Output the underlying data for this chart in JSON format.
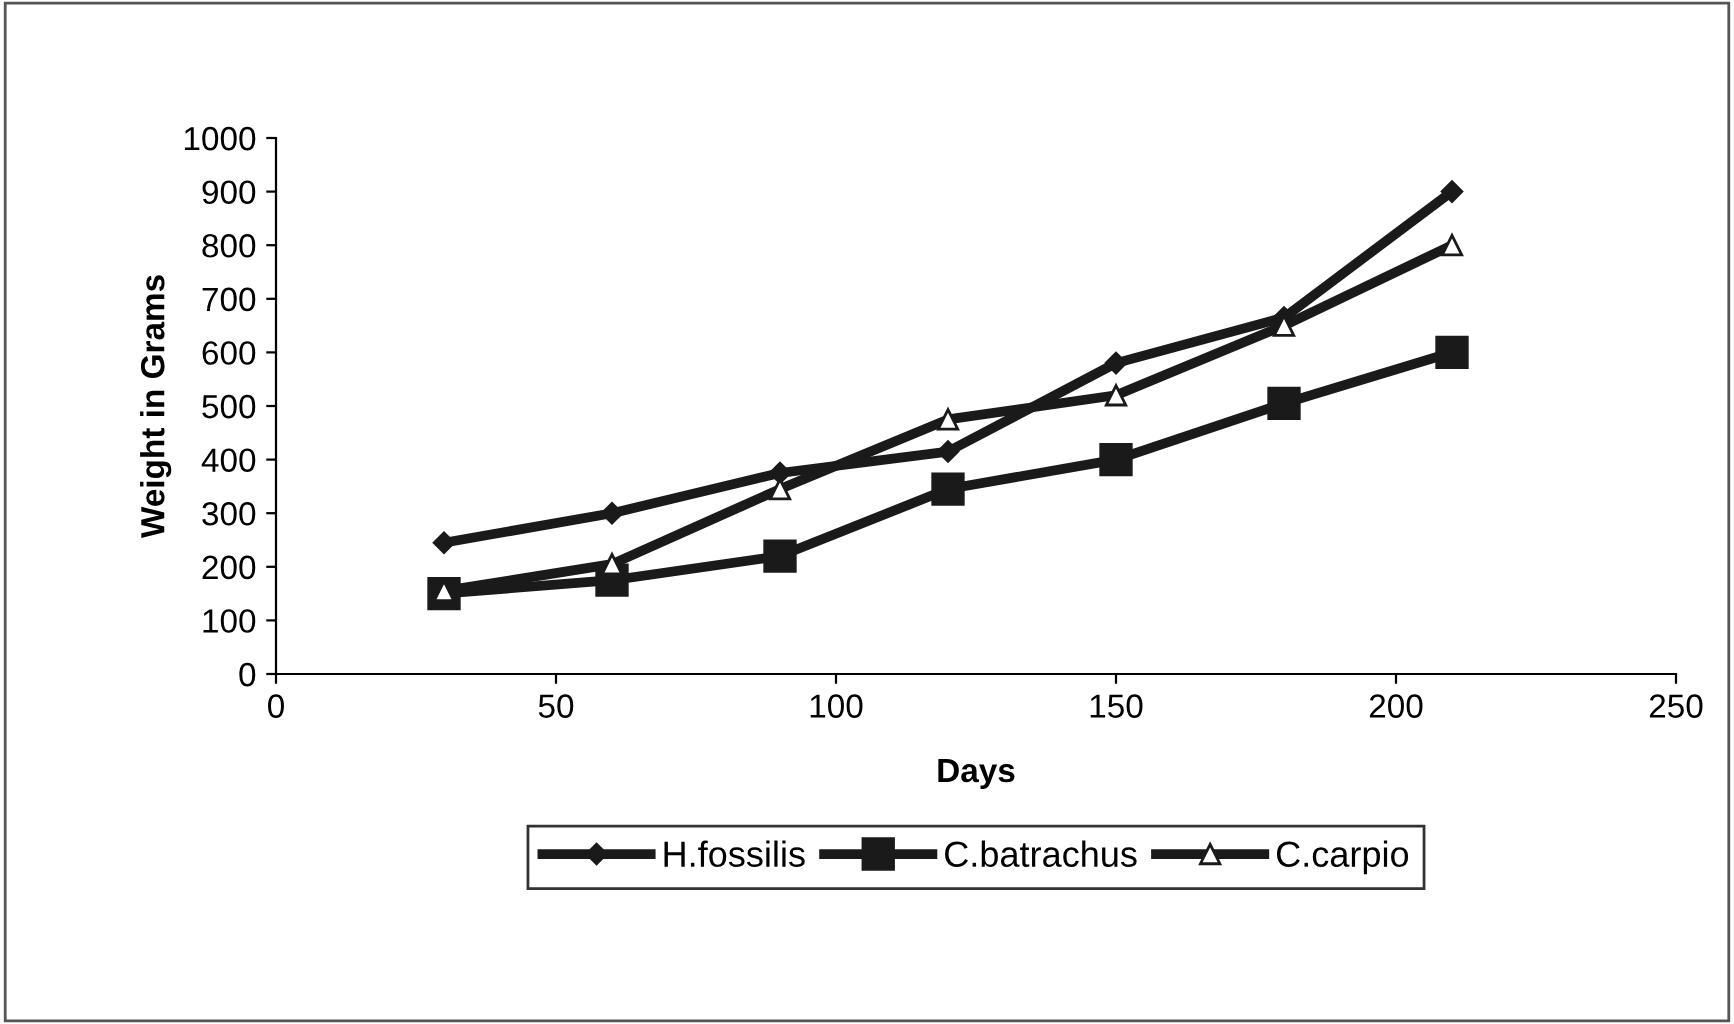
{
  "chart_data": {
    "type": "line",
    "xlabel": "Days",
    "ylabel": "Weight in Grams",
    "x": [
      30,
      60,
      90,
      120,
      150,
      180,
      210
    ],
    "series": [
      {
        "name": "H.fossilis",
        "color": "#1a1a1a",
        "marker": "diamond",
        "values": [
          245,
          300,
          375,
          415,
          580,
          665,
          900
        ]
      },
      {
        "name": "C.batrachus",
        "color": "#1a1a1a",
        "marker": "square",
        "values": [
          150,
          175,
          220,
          345,
          400,
          505,
          600
        ]
      },
      {
        "name": "C.carpio",
        "color": "#1a1a1a",
        "marker": "triangle",
        "values": [
          155,
          205,
          345,
          475,
          520,
          650,
          800
        ]
      }
    ],
    "xlim": [
      0,
      250
    ],
    "xticks": [
      0,
      50,
      100,
      150,
      200,
      250
    ],
    "ylim": [
      0,
      1000
    ],
    "yticks": [
      0,
      100,
      200,
      300,
      400,
      500,
      600,
      700,
      800,
      900,
      1000
    ],
    "grid": false,
    "legend": "bottom",
    "line_style": "solid"
  }
}
